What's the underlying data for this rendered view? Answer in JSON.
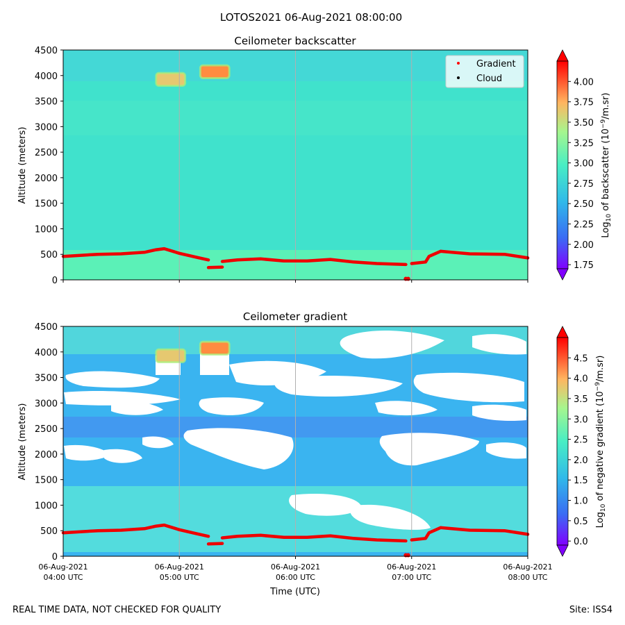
{
  "figure": {
    "suptitle": "LOTOS2021 06-Aug-2021 08:00:00",
    "footer_left": "REAL TIME DATA, NOT CHECKED FOR QUALITY",
    "footer_right": "Site: ISS4"
  },
  "legend": {
    "entries": [
      {
        "label": "Gradient",
        "color": "#ff0000"
      },
      {
        "label": "Cloud",
        "color": "#000000"
      }
    ]
  },
  "colors": {
    "backscatter_bg": "#40e2cc",
    "backscatter_low_layer": "#64f5b0",
    "gradient_bg": "#3ab4f0",
    "gradient_band": "#5ae6d8",
    "trace": "#ee0000",
    "aerosol_layer_a": "#e6c870",
    "aerosol_layer_b": "#ff8c40",
    "gridline": "#b0b0b0"
  },
  "chart_data": [
    {
      "type": "heatmap",
      "title": "Ceilometer backscatter",
      "ylabel": "Altitude (meters)",
      "xlabel": "",
      "ylim": [
        0,
        4500
      ],
      "yticks": [
        "0",
        "500",
        "1000",
        "1500",
        "2000",
        "2500",
        "3000",
        "3500",
        "4000",
        "4500"
      ],
      "xticks": [],
      "xrange_hours": [
        4,
        8
      ],
      "grid": "vertical lines at x ticks",
      "legend_placement": "top-right",
      "colorbar": {
        "label": "Log10 of backscatter (10^-9/m.sr)",
        "ticks": [
          "1.75",
          "2.00",
          "2.25",
          "2.50",
          "2.75",
          "3.00",
          "3.25",
          "3.50",
          "3.75",
          "4.00"
        ],
        "range": [
          1.7,
          4.25
        ],
        "colormap": "rainbow",
        "extend": "both"
      }
    },
    {
      "type": "heatmap",
      "title": "Ceilometer gradient",
      "ylabel": "Altitude (meters)",
      "xlabel": "Time (UTC)",
      "ylim": [
        0,
        4500
      ],
      "yticks": [
        "0",
        "500",
        "1000",
        "1500",
        "2000",
        "2500",
        "3000",
        "3500",
        "4000",
        "4500"
      ],
      "xticks": [
        {
          "date": "06-Aug-2021",
          "time": "04:00 UTC",
          "hour": 4
        },
        {
          "date": "06-Aug-2021",
          "time": "05:00 UTC",
          "hour": 5
        },
        {
          "date": "06-Aug-2021",
          "time": "06:00 UTC",
          "hour": 6
        },
        {
          "date": "06-Aug-2021",
          "time": "07:00 UTC",
          "hour": 7
        },
        {
          "date": "06-Aug-2021",
          "time": "08:00 UTC",
          "hour": 8
        }
      ],
      "xrange_hours": [
        4,
        8
      ],
      "grid": "vertical lines at x ticks",
      "colorbar": {
        "label": "Log10 of negative gradient (10^-9/m.sr)",
        "ticks": [
          "0.0",
          "0.5",
          "1.0",
          "1.5",
          "2.0",
          "2.5",
          "3.0",
          "3.5",
          "4.0",
          "4.5"
        ],
        "range": [
          -0.1,
          5.0
        ],
        "colormap": "rainbow",
        "extend": "both"
      }
    }
  ],
  "gradient_trace": {
    "name": "Gradient",
    "segments": [
      {
        "points": [
          [
            4.0,
            460
          ],
          [
            4.3,
            500
          ],
          [
            4.5,
            510
          ],
          [
            4.7,
            540
          ],
          [
            4.8,
            590
          ],
          [
            4.87,
            610
          ],
          [
            5.0,
            520
          ],
          [
            5.15,
            440
          ],
          [
            5.25,
            390
          ]
        ]
      },
      {
        "points": [
          [
            5.25,
            240
          ],
          [
            5.37,
            250
          ]
        ]
      },
      {
        "points": [
          [
            5.37,
            360
          ],
          [
            5.5,
            390
          ],
          [
            5.7,
            410
          ],
          [
            5.9,
            370
          ],
          [
            6.1,
            370
          ],
          [
            6.3,
            400
          ],
          [
            6.5,
            350
          ],
          [
            6.7,
            320
          ],
          [
            6.95,
            300
          ]
        ]
      },
      {
        "points": [
          [
            7.0,
            320
          ],
          [
            7.12,
            350
          ],
          [
            7.15,
            460
          ],
          [
            7.25,
            560
          ],
          [
            7.5,
            510
          ],
          [
            7.8,
            500
          ],
          [
            8.0,
            430
          ]
        ]
      }
    ],
    "extra_points": [
      [
        6.95,
        20
      ],
      [
        6.97,
        20
      ]
    ]
  },
  "aerosol_layers": [
    {
      "x0": 4.8,
      "x1": 5.05,
      "y0": 3800,
      "y1": 4050,
      "value": 3.5
    },
    {
      "x0": 5.18,
      "x1": 5.43,
      "y0": 3950,
      "y1": 4200,
      "value": 3.9
    }
  ]
}
